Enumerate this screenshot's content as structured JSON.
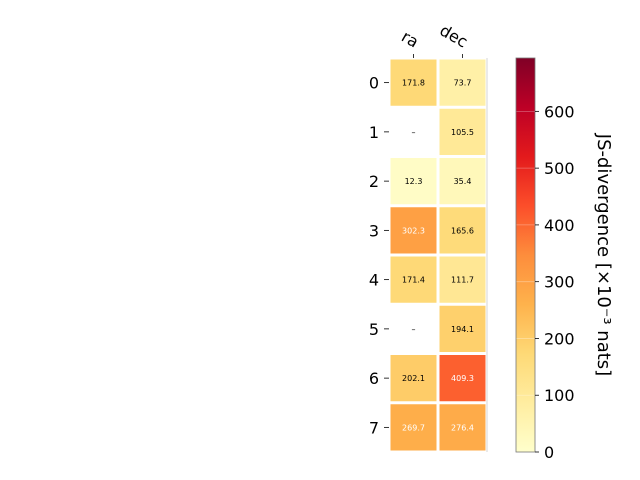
{
  "chart_data": {
    "type": "heatmap",
    "columns": [
      "ra",
      "dec"
    ],
    "rows": [
      "0",
      "1",
      "2",
      "3",
      "4",
      "5",
      "6",
      "7"
    ],
    "values": [
      [
        171.8,
        73.7
      ],
      [
        null,
        105.5
      ],
      [
        12.3,
        35.4
      ],
      [
        302.3,
        165.6
      ],
      [
        171.4,
        111.7
      ],
      [
        null,
        194.1
      ],
      [
        202.1,
        409.3
      ],
      [
        269.7,
        276.4
      ]
    ],
    "cell_labels": [
      [
        "171.8",
        "73.7"
      ],
      [
        "–",
        "105.5"
      ],
      [
        "12.3",
        "35.4"
      ],
      [
        "302.3",
        "165.6"
      ],
      [
        "171.4",
        "111.7"
      ],
      [
        "–",
        "194.1"
      ],
      [
        "202.1",
        "409.3"
      ],
      [
        "269.7",
        "276.4"
      ]
    ],
    "colorbar": {
      "label": "JS-divergence [×10⁻³ nats]",
      "range": [
        0,
        694
      ],
      "ticks": [
        0,
        100,
        200,
        300,
        400,
        500,
        600
      ],
      "colormap": "YlOrRd"
    },
    "missing_marker": "–"
  }
}
